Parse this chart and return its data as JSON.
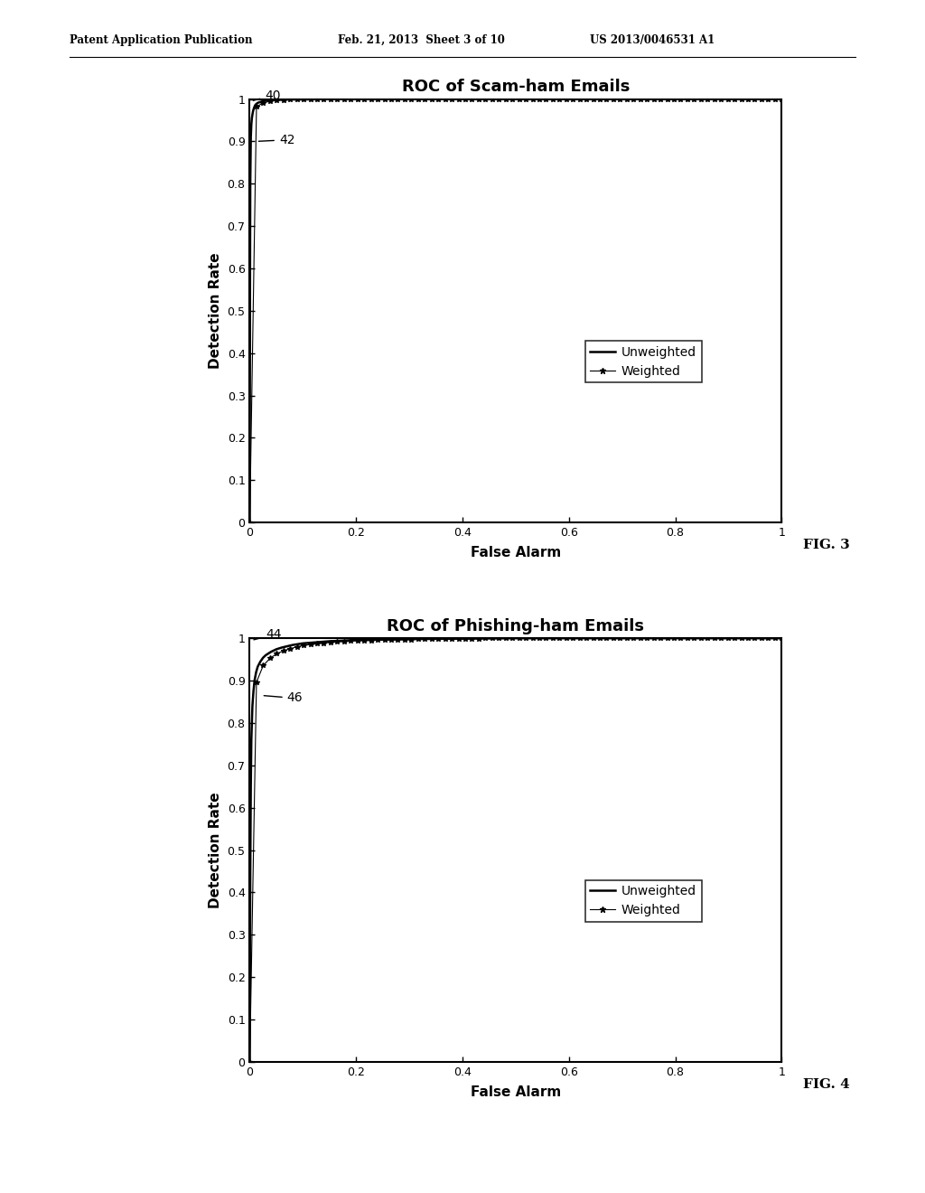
{
  "header_left": "Patent Application Publication",
  "header_mid": "Feb. 21, 2013  Sheet 3 of 10",
  "header_right": "US 2013/0046531 A1",
  "fig3_title": "ROC of Scam-ham Emails",
  "fig4_title": "ROC of Phishing-ham Emails",
  "ylabel": "Detection Rate",
  "xlabel": "False Alarm",
  "fig3_label": "FIG. 3",
  "fig4_label": "FIG. 4",
  "ann1_fig3": "40",
  "ann2_fig3": "42",
  "ann1_fig4": "44",
  "ann2_fig4": "46",
  "legend_unweighted": "Unweighted",
  "legend_weighted": "Weighted",
  "bg_color": "#ffffff",
  "yticks": [
    0,
    0.1,
    0.2,
    0.3,
    0.4,
    0.5,
    0.6,
    0.7,
    0.8,
    0.9,
    1
  ],
  "xticks": [
    0,
    0.2,
    0.4,
    0.6,
    0.8,
    1
  ],
  "ytick_labels": [
    "0",
    "0.1",
    "0.2",
    "0.3",
    "0.4",
    "0.5",
    "0.6",
    "0.7",
    "0.8",
    "0.9",
    "1"
  ],
  "xtick_labels": [
    "0",
    "0.2",
    "0.4",
    "0.6",
    "0.8",
    "1"
  ]
}
